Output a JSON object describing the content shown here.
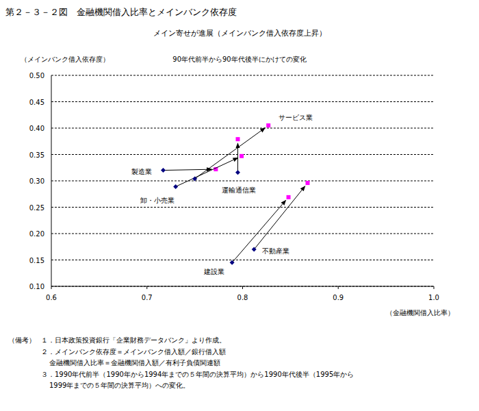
{
  "chart_data": {
    "type": "scatter",
    "title": "第２－３－２図　金融機関借入比率とメインバンク依存度",
    "subtitle": "メイン寄せが進展（メインバンク借入依存度上昇）",
    "caption": "90年代前半から90年代後半にかけての変化",
    "y_label": "（メインバンク借入依存度）",
    "x_label": "（金融機関借入比率）",
    "xlim": [
      0.6,
      1.0
    ],
    "xticks": [
      0.6,
      0.7,
      0.8,
      0.9,
      {
        "value": 1.0,
        "label": "1.0"
      }
    ],
    "ylim": [
      0.1,
      0.5
    ],
    "yticks": [
      {
        "value": 0.1,
        "label": "0.10"
      },
      0.15,
      {
        "value": 0.2,
        "label": "0.20"
      },
      0.25,
      {
        "value": 0.3,
        "label": "0.30"
      },
      0.35,
      {
        "value": 0.4,
        "label": "0.40"
      },
      0.45,
      {
        "value": 0.5,
        "label": "0.50"
      }
    ],
    "grid": true,
    "series": [
      {
        "name": "製造業",
        "x": [
          0.717,
          0.772
        ],
        "values": [
          0.32,
          0.322
        ],
        "colors": [
          "#000080",
          "#ff00ff"
        ]
      },
      {
        "name": "卸・小売業",
        "x": [
          0.73,
          0.799
        ],
        "values": [
          0.289,
          0.347
        ],
        "colors": [
          "#000080",
          "#ff00ff"
        ]
      },
      {
        "name": "サービス業",
        "x": [
          0.75,
          0.827
        ],
        "values": [
          0.304,
          0.405
        ],
        "colors": [
          "#000080",
          "#ff00ff"
        ]
      },
      {
        "name": "運輸通信業",
        "x": [
          0.795,
          0.795
        ],
        "values": [
          0.316,
          0.379
        ],
        "colors": [
          "#000080",
          "#ff00ff"
        ]
      },
      {
        "name": "建設業",
        "x": [
          0.789,
          0.848
        ],
        "values": [
          0.145,
          0.269
        ],
        "colors": [
          "#000080",
          "#ff00ff"
        ]
      },
      {
        "name": "不動産業",
        "x": [
          0.812,
          0.868
        ],
        "values": [
          0.17,
          0.296
        ],
        "colors": [
          "#000080",
          "#ff00ff"
        ]
      }
    ],
    "notes_heading": "（備考）",
    "notes": [
      "１．日本政策投資銀行「企業財務データバンク」より作成。",
      "２．メインバンク依存度＝メインバンク借入額／銀行借入額",
      "金融機関借入比率＝金融機関借入額／有利子負債関連額",
      "３．1990年代前半（1990年から1994年までの５年間の決算平均）から1990年代後半（1995年から",
      "1999年までの５年間の決算平均）への変化。"
    ]
  }
}
